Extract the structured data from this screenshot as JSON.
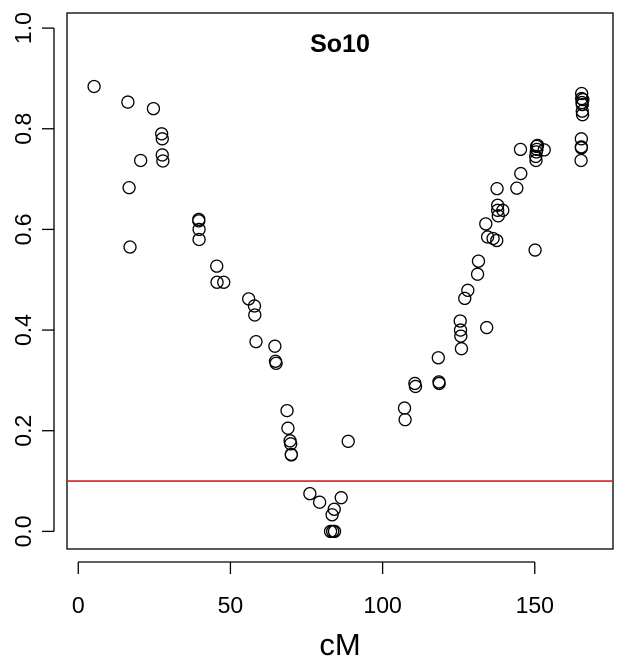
{
  "chart_data": {
    "type": "scatter",
    "title": "So10",
    "xlabel": "cM",
    "ylabel": "",
    "xlim": [
      -3.7,
      175.7
    ],
    "ylim": [
      -0.035,
      1.03
    ],
    "xticks": [
      0,
      50,
      100,
      150
    ],
    "xtick_labels": [
      "0",
      "50",
      "100",
      "150"
    ],
    "yticks": [
      0.0,
      0.2,
      0.4,
      0.6,
      0.8,
      1.0
    ],
    "ytick_labels": [
      "0.0",
      "0.2",
      "0.4",
      "0.6",
      "0.8",
      "1.0"
    ],
    "grid": false,
    "marker": "open-circle",
    "point_color": "#000000",
    "threshold": {
      "y": 0.1,
      "color": "#cc2222"
    },
    "series": [
      {
        "x": [
          5.2,
          16.3,
          16.7,
          17.0,
          20.5,
          24.7,
          27.4,
          27.6,
          27.6,
          27.8,
          39.6,
          39.6,
          39.7,
          39.7,
          45.5,
          45.6,
          47.8,
          56.0,
          57.9,
          58.0,
          58.4,
          64.6,
          64.8,
          65.0,
          68.6,
          68.9,
          69.6,
          69.8,
          70.0,
          70.0,
          76.1,
          79.3,
          82.9,
          83.4,
          83.6,
          84.1,
          84.2,
          86.4,
          88.7,
          107.2,
          107.4,
          110.6,
          110.8,
          118.3,
          118.5,
          118.6,
          125.5,
          125.6,
          125.7,
          125.9,
          127.0,
          128.0,
          131.2,
          131.5,
          133.9,
          134.2,
          134.5,
          136.3,
          137.5,
          137.6,
          137.8,
          137.8,
          138.0,
          139.5,
          144.1,
          145.3,
          145.4,
          150.1,
          150.3,
          150.4,
          150.5,
          150.6,
          150.7,
          150.9,
          153.1,
          165.2,
          165.3,
          165.3,
          165.3,
          165.4,
          165.4,
          165.5,
          165.6,
          165.6,
          165.7,
          165.8
        ],
        "y": [
          0.884,
          0.853,
          0.683,
          0.565,
          0.737,
          0.84,
          0.79,
          0.78,
          0.748,
          0.736,
          0.62,
          0.617,
          0.6,
          0.58,
          0.527,
          0.495,
          0.495,
          0.462,
          0.448,
          0.43,
          0.377,
          0.368,
          0.338,
          0.334,
          0.24,
          0.205,
          0.18,
          0.174,
          0.153,
          0.152,
          0.075,
          0.058,
          0.0,
          0.033,
          0.0,
          0.044,
          0.0,
          0.067,
          0.179,
          0.245,
          0.222,
          0.294,
          0.288,
          0.345,
          0.297,
          0.294,
          0.418,
          0.4,
          0.388,
          0.363,
          0.463,
          0.479,
          0.511,
          0.537,
          0.611,
          0.405,
          0.585,
          0.582,
          0.578,
          0.681,
          0.648,
          0.638,
          0.627,
          0.638,
          0.682,
          0.759,
          0.711,
          0.559,
          0.745,
          0.737,
          0.754,
          0.765,
          0.759,
          0.767,
          0.758,
          0.737,
          0.78,
          0.764,
          0.762,
          0.87,
          0.86,
          0.852,
          0.848,
          0.835,
          0.828,
          0.858
        ]
      }
    ]
  }
}
